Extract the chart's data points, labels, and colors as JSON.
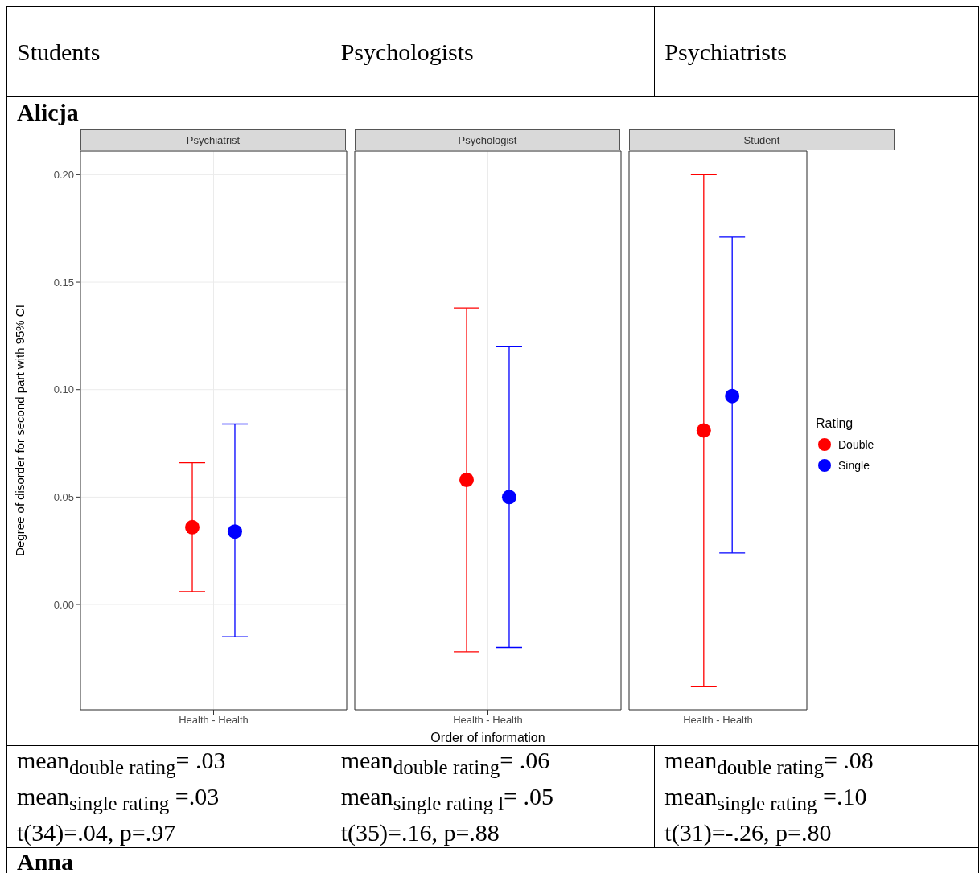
{
  "chart_data": [
    {
      "type": "other",
      "annotations": [
        "Students",
        "Psychologists",
        "Psychiatrists",
        "Alicja",
        "Anna"
      ]
    },
    {
      "type": "scatter",
      "title": "Psychiatrist",
      "ylabel": "Degree of disorder for second part with 95% CI",
      "categories": [
        "Health - Health"
      ],
      "ylim": [
        -0.049,
        0.211
      ],
      "yticks": [
        {
          "value": 0,
          "label": "0.00"
        },
        0.05,
        {
          "value": 0.1,
          "label": "0.10"
        },
        0.15,
        {
          "value": 0.2,
          "label": "0.20"
        }
      ],
      "grid": true,
      "marker": "circle",
      "legend": false,
      "series": [
        {
          "color": "#ff0000",
          "values": [
            0.036
          ],
          "errors": [
            [
              0.006,
              0.066
            ]
          ]
        },
        {
          "color": "#0000ff",
          "values": [
            0.034
          ],
          "errors": [
            [
              -0.015,
              0.084
            ]
          ]
        }
      ],
      "annotations": [
        "mean$_{double rating}$= .03",
        "mean$_{single rating}$ =.03",
        "t(34)=.04, p=.97"
      ]
    },
    {
      "type": "scatter",
      "title": "Psychologist",
      "xlabel": "Order of information",
      "categories": [
        "Health - Health"
      ],
      "ylim": [
        -0.049,
        0.211
      ],
      "yticks": [
        0,
        0.05,
        0.1,
        0.15,
        0.2
      ],
      "tick_labels": "x",
      "grid": true,
      "marker": "circle",
      "legend": false,
      "series": [
        {
          "color": "#ff0000",
          "values": [
            0.058
          ],
          "errors": [
            [
              -0.022,
              0.138
            ]
          ]
        },
        {
          "color": "#0000ff",
          "values": [
            0.05
          ],
          "errors": [
            [
              -0.02,
              0.12
            ]
          ]
        }
      ],
      "annotations": [
        "mean$_{double rating}$= .06",
        "mean$_{single rating l}$= .05",
        "t(35)=.16, p=.88"
      ]
    },
    {
      "type": "scatter",
      "title": "Student",
      "categories": [
        "Health - Health"
      ],
      "ylim": [
        -0.049,
        0.211
      ],
      "yticks": [
        0,
        0.05,
        0.1,
        0.15,
        0.2
      ],
      "tick_labels": "x",
      "grid": true,
      "marker": "circle",
      "legend": "right",
      "legend_title": "Rating",
      "series": [
        {
          "name": "Double",
          "color": "#ff0000",
          "values": [
            0.081
          ],
          "errors": [
            [
              -0.038,
              0.2
            ]
          ]
        },
        {
          "name": "Single",
          "color": "#0000ff",
          "values": [
            0.097
          ],
          "errors": [
            [
              0.024,
              0.171
            ]
          ]
        }
      ],
      "annotations": [
        "mean$_{double rating}$= .08",
        "mean$_{single rating}$ =.10",
        "t(31)=-.26, p=.80"
      ]
    }
  ]
}
